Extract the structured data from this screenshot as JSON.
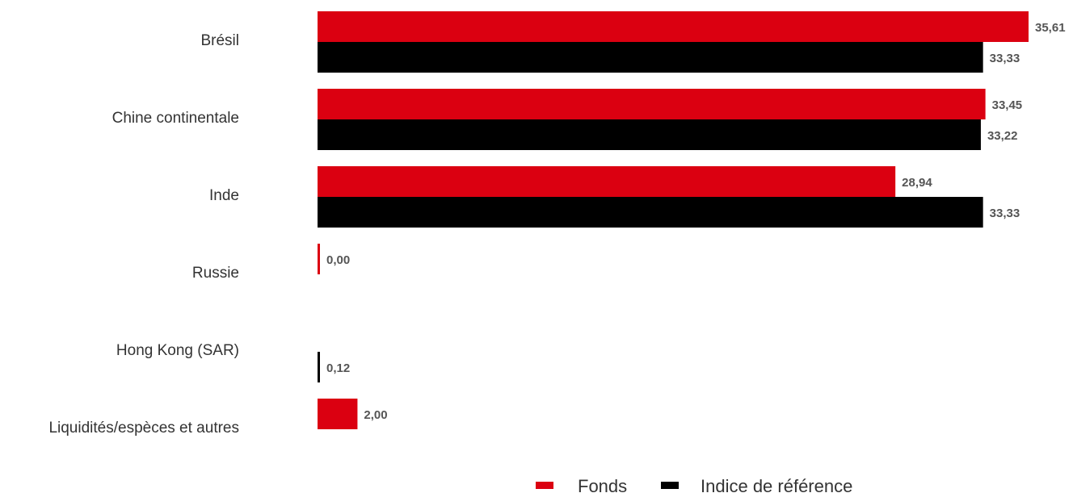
{
  "chart_data": {
    "type": "bar",
    "orientation": "horizontal",
    "categories": [
      "Brésil",
      "Chine continentale",
      "Inde",
      "Russie",
      "Hong Kong (SAR)",
      "Liquidités/espèces et autres"
    ],
    "series": [
      {
        "name": "Fonds",
        "color": "#db0011",
        "values": [
          35.61,
          33.45,
          28.94,
          0.0,
          null,
          2.0
        ]
      },
      {
        "name": "Indice de référence",
        "color": "#000000",
        "values": [
          33.33,
          33.22,
          33.33,
          null,
          0.12,
          null
        ]
      }
    ],
    "data_labels": [
      [
        "35,61",
        "33,45",
        "28,94",
        "0,00",
        null,
        "2,00"
      ],
      [
        "33,33",
        "33,22",
        "33,33",
        null,
        "0,12",
        null
      ]
    ],
    "title": "",
    "xlabel": "",
    "ylabel": "",
    "grid": false,
    "legend": "bottom-right"
  }
}
